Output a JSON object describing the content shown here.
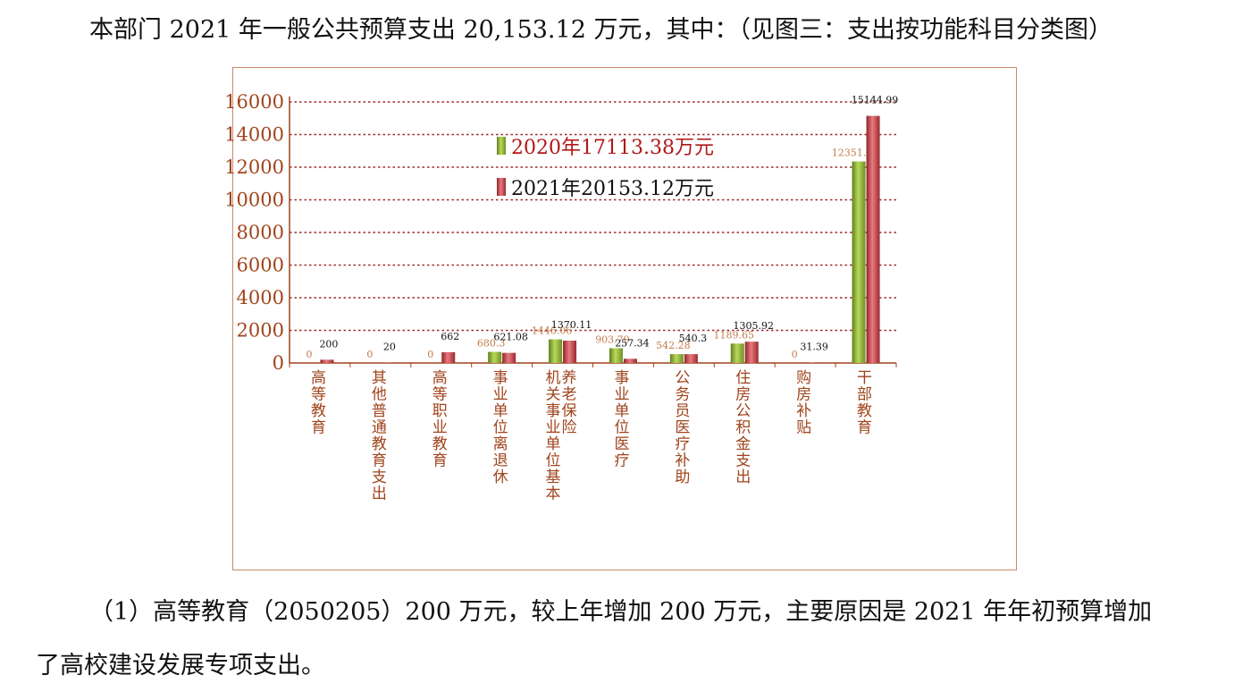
{
  "text": {
    "intro": "本部门 2021 年一般公共预算支出 20,153.12 万元，其中：（见图三：支出按功能科目分类图）",
    "item1_line1": "（1）高等教育（2050205）200 万元，较上年增加 200 万元，主要原因是 2021 年年初预算增加",
    "item1_line2": "了高校建设发展专项支出。"
  },
  "chart_data": {
    "type": "bar",
    "categories": [
      "高等教育",
      "其他普通教育支出",
      "高等职业教育",
      "事业单位离退休",
      "机关事业单位基本养老保险",
      "事业单位医疗",
      "公务员医疗补助",
      "住房公积金支出",
      "购房补贴",
      "干部教育"
    ],
    "category_lines": [
      [
        "高等教育"
      ],
      [
        "其他普通教育支出"
      ],
      [
        "高等职业教育"
      ],
      [
        "事业单位离退休"
      ],
      [
        "机关事业单位基本",
        "养老保险"
      ],
      [
        "事业单位医疗"
      ],
      [
        "公务员医疗补助"
      ],
      [
        "住房公积金支出"
      ],
      [
        "购房补贴"
      ],
      [
        "干部教育"
      ]
    ],
    "series": [
      {
        "name": "2020年17113.38万元",
        "color": "#8cb43a",
        "values": [
          0,
          0,
          0,
          680.3,
          1446.06,
          903.79,
          542.28,
          1189.65,
          0,
          12351.32
        ],
        "labels": [
          "0",
          "0",
          "0",
          "680.3",
          "1446.06",
          "903.79",
          "542.28",
          "1189.65",
          "0",
          "12351.32"
        ]
      },
      {
        "name": "2021年20153.12万元",
        "color": "#c8464c",
        "values": [
          200,
          20,
          662,
          621.08,
          1370.11,
          257.34,
          540.3,
          1305.92,
          31.39,
          15144.99
        ],
        "labels": [
          "200",
          "20",
          "662",
          "621.08",
          "1370.11",
          "257.34",
          "540.3",
          "1305.92",
          "31.39",
          "15144.99"
        ]
      }
    ],
    "yticks": [
      0,
      2000,
      4000,
      6000,
      8000,
      10000,
      12000,
      14000,
      16000
    ],
    "ylim": [
      0,
      16000
    ],
    "grid": true,
    "gridline_color": "#a0282a",
    "legend_position": "upper-center"
  }
}
